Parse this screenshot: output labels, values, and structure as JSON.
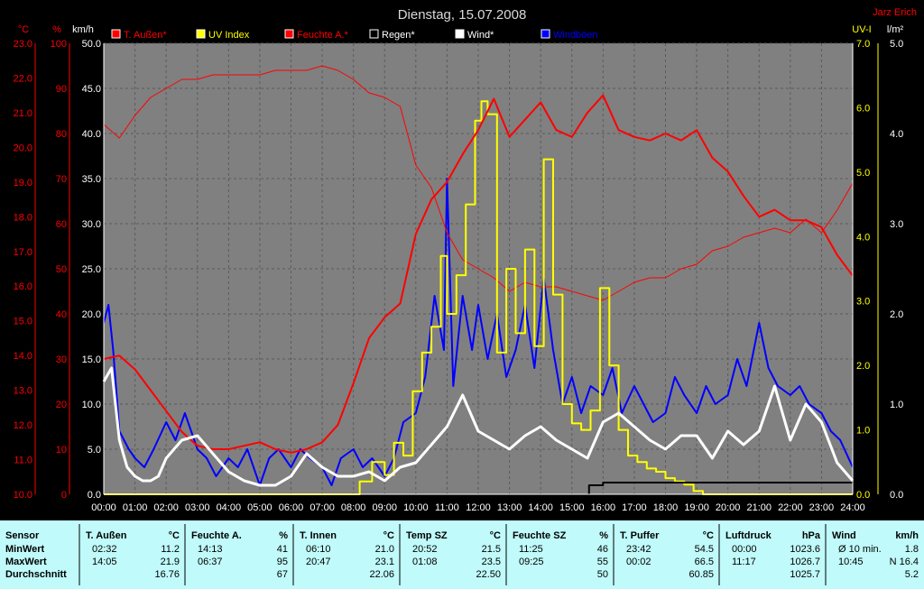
{
  "header": {
    "date_title": "Dienstag, 15.07.2008",
    "author": "Jarz Erich"
  },
  "colors": {
    "bg": "#000000",
    "plot_bg": "#808080",
    "red": "#ff0000",
    "yellow": "#ffff00",
    "blue": "#0000ff",
    "white": "#ffffff",
    "black": "#000000",
    "header_text": "#d8d8d8",
    "table_bg": "#c0fafa"
  },
  "chart_data": {
    "type": "line",
    "grid": true,
    "x_axis": {
      "range": [
        0,
        24
      ],
      "ticks": [
        "00:00",
        "01:00",
        "02:00",
        "03:00",
        "04:00",
        "05:00",
        "06:00",
        "07:00",
        "08:00",
        "09:00",
        "10:00",
        "11:00",
        "12:00",
        "13:00",
        "14:00",
        "15:00",
        "16:00",
        "17:00",
        "18:00",
        "19:00",
        "20:00",
        "21:00",
        "22:00",
        "23:00",
        "24:00"
      ]
    },
    "axes": {
      "temp": {
        "unit": "°C",
        "range": [
          10,
          23
        ],
        "ticks": [
          "10.0",
          "11.0",
          "12.0",
          "13.0",
          "14.0",
          "15.0",
          "16.0",
          "17.0",
          "18.0",
          "19.0",
          "20.0",
          "21.0",
          "22.0",
          "23.0"
        ]
      },
      "humid": {
        "unit": "%",
        "range": [
          0,
          100
        ],
        "ticks": [
          "0",
          "10",
          "20",
          "30",
          "40",
          "50",
          "60",
          "70",
          "80",
          "90",
          "100"
        ]
      },
      "wind": {
        "unit": "km/h",
        "range": [
          0,
          50
        ],
        "ticks": [
          "0.0",
          "5.0",
          "10.0",
          "15.0",
          "20.0",
          "25.0",
          "30.0",
          "35.0",
          "40.0",
          "45.0",
          "50.0"
        ]
      },
      "uv": {
        "unit": "UV-I",
        "range": [
          0,
          7
        ],
        "ticks": [
          "0.0",
          "1.0",
          "2.0",
          "3.0",
          "4.0",
          "5.0",
          "6.0",
          "7.0"
        ]
      },
      "rain": {
        "unit": "l/m²",
        "range": [
          0,
          5
        ],
        "ticks": [
          "0.0",
          "1.0",
          "2.0",
          "3.0",
          "4.0",
          "5.0"
        ]
      }
    },
    "legend": [
      {
        "name": "T. Außen*",
        "color": "#ff0000"
      },
      {
        "name": "UV Index",
        "color": "#ffff00"
      },
      {
        "name": "Feuchte A.*",
        "color": "#ff0000"
      },
      {
        "name": "Regen*",
        "color": "#000000"
      },
      {
        "name": "Wind*",
        "color": "#ffffff"
      },
      {
        "name": "Windböen",
        "color": "#0000ff"
      }
    ],
    "series": [
      {
        "name": "T. Außen*",
        "axis": "temp",
        "color": "#ff0000",
        "width": 2,
        "x": [
          0,
          0.5,
          1,
          1.5,
          2,
          2.5,
          3,
          3.5,
          4,
          4.5,
          5,
          5.5,
          6,
          6.5,
          7,
          7.5,
          8,
          8.5,
          9,
          9.5,
          10,
          10.5,
          11,
          11.5,
          12,
          12.5,
          13,
          13.5,
          14,
          14.5,
          15,
          15.5,
          16,
          16.5,
          17,
          17.5,
          18,
          18.5,
          19,
          19.5,
          20,
          20.5,
          21,
          21.5,
          22,
          22.5,
          23,
          23.5,
          24
        ],
        "y": [
          13.9,
          14.0,
          13.6,
          13.0,
          12.4,
          11.8,
          11.4,
          11.3,
          11.3,
          11.4,
          11.5,
          11.3,
          11.2,
          11.3,
          11.5,
          12.0,
          13.2,
          14.5,
          15.1,
          15.5,
          17.5,
          18.5,
          19.0,
          19.8,
          20.5,
          21.4,
          20.3,
          20.8,
          21.3,
          20.5,
          20.3,
          21.0,
          21.5,
          20.5,
          20.3,
          20.2,
          20.4,
          20.2,
          20.5,
          19.7,
          19.3,
          18.6,
          18.0,
          18.2,
          17.9,
          17.9,
          17.7,
          16.9,
          16.3
        ]
      },
      {
        "name": "Feuchte A.*",
        "axis": "humid",
        "color": "#ff0000",
        "width": 1,
        "x": [
          0,
          0.5,
          1,
          1.5,
          2,
          2.5,
          3,
          3.5,
          4,
          4.5,
          5,
          5.5,
          6,
          6.5,
          7,
          7.5,
          8,
          8.5,
          9,
          9.5,
          10,
          10.5,
          11,
          11.5,
          12,
          12.5,
          13,
          13.5,
          14,
          14.5,
          15,
          15.5,
          16,
          16.5,
          17,
          17.5,
          18,
          18.5,
          19,
          19.5,
          20,
          20.5,
          21,
          21.5,
          22,
          22.5,
          23,
          23.5,
          24
        ],
        "y": [
          82,
          79,
          84,
          88,
          90,
          92,
          92,
          93,
          93,
          93,
          93,
          94,
          94,
          94,
          95,
          94,
          92,
          89,
          88,
          86,
          73,
          68,
          58,
          52,
          50,
          48,
          45,
          47,
          46,
          46,
          45,
          44,
          43,
          45,
          47,
          48,
          48,
          50,
          51,
          54,
          55,
          57,
          58,
          59,
          58,
          61,
          58,
          63,
          69
        ]
      },
      {
        "name": "UV Index",
        "axis": "uv",
        "color": "#ffff00",
        "width": 2,
        "x": [
          0,
          7.8,
          8.2,
          8.6,
          9,
          9.3,
          9.6,
          9.9,
          10.2,
          10.5,
          10.8,
          11,
          11.3,
          11.6,
          11.9,
          12.1,
          12.3,
          12.6,
          12.9,
          13.2,
          13.5,
          13.8,
          14.1,
          14.4,
          14.7,
          15,
          15.3,
          15.6,
          15.9,
          16.2,
          16.5,
          16.8,
          17.1,
          17.4,
          17.7,
          18,
          18.3,
          18.6,
          18.9,
          19.2,
          24
        ],
        "y": [
          0,
          0,
          0.2,
          0.5,
          0.3,
          0.8,
          0.6,
          1.6,
          2.2,
          2.6,
          3.7,
          2.8,
          3.4,
          4.5,
          5.8,
          6.1,
          5.9,
          2.2,
          3.5,
          2.5,
          3.8,
          2.3,
          5.2,
          3.1,
          1.4,
          1.1,
          1.0,
          1.3,
          3.2,
          2.0,
          1.0,
          0.6,
          0.5,
          0.4,
          0.35,
          0.25,
          0.2,
          0.15,
          0.05,
          0,
          0
        ]
      },
      {
        "name": "Wind*",
        "axis": "wind",
        "color": "#ffffff",
        "width": 3,
        "x": [
          0,
          0.25,
          0.5,
          0.75,
          1,
          1.25,
          1.5,
          1.75,
          2,
          2.5,
          3,
          3.5,
          4,
          4.5,
          5,
          5.5,
          6,
          6.5,
          7,
          7.5,
          8,
          8.5,
          9,
          9.5,
          10,
          10.5,
          11,
          11.5,
          12,
          12.5,
          13,
          13.5,
          14,
          14.5,
          15,
          15.5,
          16,
          16.5,
          17,
          17.5,
          18,
          18.5,
          19,
          19.5,
          20,
          20.5,
          21,
          21.5,
          22,
          22.5,
          23,
          23.5,
          24
        ],
        "y": [
          12.5,
          14.0,
          6.0,
          3.0,
          2.0,
          1.5,
          1.5,
          2.0,
          4.0,
          6.0,
          6.5,
          4.5,
          2.5,
          1.5,
          1.0,
          1.0,
          2.0,
          4.5,
          3.0,
          2.0,
          2.0,
          2.5,
          1.5,
          3.0,
          3.5,
          5.5,
          7.5,
          11.0,
          7.0,
          6.0,
          5.0,
          6.5,
          7.5,
          6.0,
          5.0,
          4.0,
          8.0,
          9.0,
          7.5,
          6.0,
          5.0,
          6.5,
          6.5,
          4.0,
          7.0,
          5.5,
          7.0,
          12.0,
          6.0,
          10.0,
          8.0,
          3.5,
          1.5
        ]
      },
      {
        "name": "Windböen",
        "axis": "wind",
        "color": "#0000ff",
        "width": 2,
        "x": [
          0,
          0.15,
          0.3,
          0.5,
          0.8,
          1,
          1.3,
          1.6,
          2,
          2.3,
          2.6,
          3,
          3.3,
          3.6,
          4,
          4.3,
          4.6,
          5,
          5.3,
          5.6,
          6,
          6.3,
          6.6,
          7,
          7.3,
          7.6,
          8,
          8.3,
          8.6,
          9,
          9.3,
          9.6,
          10,
          10.3,
          10.6,
          10.9,
          11,
          11.2,
          11.5,
          11.8,
          12,
          12.3,
          12.6,
          12.9,
          13.2,
          13.5,
          13.8,
          14.1,
          14.4,
          14.7,
          15,
          15.3,
          15.6,
          16,
          16.3,
          16.6,
          17,
          17.3,
          17.6,
          18,
          18.3,
          18.6,
          19,
          19.3,
          19.6,
          20,
          20.3,
          20.6,
          21,
          21.3,
          21.6,
          22,
          22.3,
          22.6,
          23,
          23.3,
          23.6,
          24
        ],
        "y": [
          19.0,
          21.0,
          16.0,
          7.0,
          5.0,
          4.0,
          3.0,
          5.0,
          8.0,
          6.0,
          9.0,
          5.0,
          4.0,
          2.0,
          4.0,
          3.0,
          5.0,
          1.0,
          4.0,
          5.0,
          3.0,
          5.0,
          4.0,
          3.0,
          1.0,
          4.0,
          5.0,
          3.0,
          4.0,
          2.0,
          4.0,
          8.0,
          9.0,
          13.0,
          22.0,
          16.0,
          35.0,
          12.0,
          22.0,
          16.0,
          21.0,
          15.0,
          20.0,
          13.0,
          16.0,
          21.0,
          14.0,
          24.0,
          16.0,
          10.0,
          13.0,
          9.0,
          12.0,
          11.0,
          14.0,
          9.0,
          12.0,
          10.0,
          8.0,
          9.0,
          13.0,
          11.0,
          9.0,
          12.0,
          10.0,
          11.0,
          15.0,
          12.0,
          19.0,
          14.0,
          12.0,
          11.0,
          12.0,
          10.0,
          9.0,
          7.0,
          6.0,
          3.0
        ]
      },
      {
        "name": "Regen*",
        "axis": "rain",
        "color": "#000000",
        "width": 2,
        "x": [
          15.5,
          15.55,
          16.0,
          21.0,
          24.0
        ],
        "y": [
          0,
          0.1,
          0.13,
          0.13,
          0.13
        ]
      }
    ]
  },
  "table": {
    "row_labels": [
      "Sensor",
      "MinWert",
      "MaxWert",
      "Durchschnitt"
    ],
    "columns": [
      {
        "title": "T. Außen",
        "unit": "°C",
        "min_time": "02:32",
        "min_val": "11.2",
        "max_time": "14:05",
        "max_val": "21.9",
        "avg": "16.76"
      },
      {
        "title": "Feuchte A.",
        "unit": "%",
        "min_time": "14:13",
        "min_val": "41",
        "max_time": "06:37",
        "max_val": "95",
        "avg": "67"
      },
      {
        "title": "T. Innen",
        "unit": "°C",
        "min_time": "06:10",
        "min_val": "21.0",
        "max_time": "20:47",
        "max_val": "23.1",
        "avg": "22.06"
      },
      {
        "title": "Temp SZ",
        "unit": "°C",
        "min_time": "20:52",
        "min_val": "21.5",
        "max_time": "01:08",
        "max_val": "23.5",
        "avg": "22.50"
      },
      {
        "title": "Feuchte SZ",
        "unit": "%",
        "min_time": "11:25",
        "min_val": "46",
        "max_time": "09:25",
        "max_val": "55",
        "avg": "50"
      },
      {
        "title": "T. Puffer",
        "unit": "°C",
        "min_time": "23:42",
        "min_val": "54.5",
        "max_time": "00:02",
        "max_val": "66.5",
        "avg": "60.85"
      },
      {
        "title": "Luftdruck",
        "unit": "hPa",
        "min_time": "00:00",
        "min_val": "1023.6",
        "max_time": "11:17",
        "max_val": "1026.7",
        "avg": "1025.7"
      },
      {
        "title": "Wind",
        "unit": "km/h",
        "min_time": "Ø 10 min.",
        "min_val": "1.8",
        "max_time": "10:45",
        "max_val": "N 16.4",
        "avg": "5.2"
      }
    ]
  }
}
